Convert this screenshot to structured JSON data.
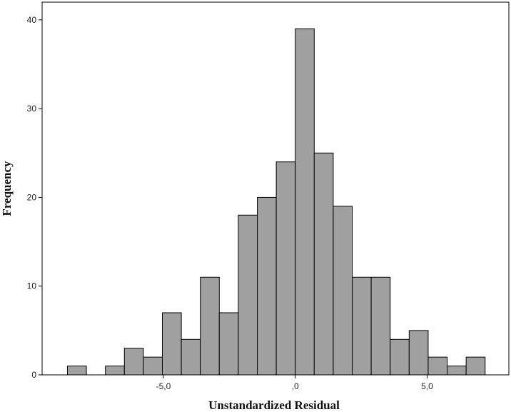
{
  "chart_data": {
    "type": "bar",
    "subtype": "histogram",
    "xlabel": "Unstandardized Residual",
    "ylabel": "Frequency",
    "bin_width": 0.72,
    "bin_start": -8.64,
    "counts": [
      1,
      0,
      1,
      3,
      2,
      7,
      4,
      11,
      7,
      18,
      20,
      24,
      39,
      25,
      19,
      11,
      11,
      4,
      5,
      2,
      1,
      2
    ],
    "xlim": [
      -9.6,
      8.1
    ],
    "ylim": [
      0,
      42
    ],
    "x_ticks": [
      {
        "value": -5,
        "label": "-5,0"
      },
      {
        "value": 0,
        "label": ",0"
      },
      {
        "value": 5,
        "label": "5,0"
      }
    ],
    "y_ticks": [
      {
        "value": 0,
        "label": "0"
      },
      {
        "value": 10,
        "label": "10"
      },
      {
        "value": 20,
        "label": "20"
      },
      {
        "value": 30,
        "label": "30"
      },
      {
        "value": 40,
        "label": "40"
      }
    ],
    "grid": false,
    "bar_color": "#a0a0a0",
    "edge_color": "#000000"
  }
}
